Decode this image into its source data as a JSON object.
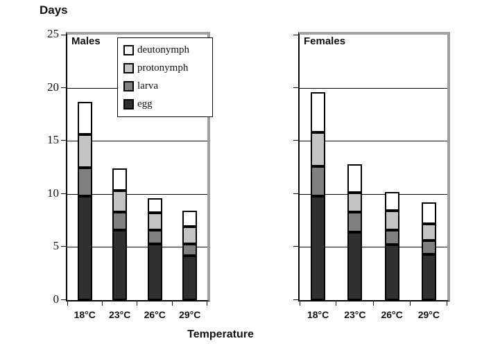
{
  "page": {
    "y_axis_title": "Days",
    "x_axis_title": "Temperature"
  },
  "colors": {
    "egg": "#303030",
    "larva": "#808080",
    "protonymph": "#c4c4c4",
    "deutonymph": "#ffffff",
    "bar_border": "#000000",
    "gridline": "#000000",
    "panel_shadow": "#a0a0a0"
  },
  "legend": {
    "position": "top-left-inside-males-panel",
    "entries": [
      {
        "label": "deutonymph",
        "color": "#ffffff"
      },
      {
        "label": "protonymph",
        "color": "#c4c4c4"
      },
      {
        "label": "larva",
        "color": "#808080"
      },
      {
        "label": "egg",
        "color": "#303030"
      }
    ]
  },
  "chart_data": [
    {
      "type": "bar",
      "stacked": true,
      "title": "Males",
      "categories": [
        "18°C",
        "23°C",
        "26°C",
        "29°C"
      ],
      "series": [
        {
          "name": "egg",
          "color": "#303030",
          "values": [
            9.8,
            6.6,
            5.3,
            4.2
          ]
        },
        {
          "name": "larva",
          "color": "#808080",
          "values": [
            2.7,
            1.7,
            1.3,
            1.1
          ]
        },
        {
          "name": "protonymph",
          "color": "#c4c4c4",
          "values": [
            3.1,
            2.0,
            1.6,
            1.6
          ]
        },
        {
          "name": "deutonymph",
          "color": "#ffffff",
          "values": [
            3.1,
            2.1,
            1.4,
            1.5
          ]
        }
      ],
      "ylim": [
        0,
        25
      ],
      "yticks": [
        0,
        5,
        10,
        15,
        20,
        25
      ],
      "grid": true,
      "show_ytick_labels": true
    },
    {
      "type": "bar",
      "stacked": true,
      "title": "Females",
      "categories": [
        "18°C",
        "23°C",
        "26°C",
        "29°C"
      ],
      "series": [
        {
          "name": "egg",
          "color": "#303030",
          "values": [
            9.8,
            6.4,
            5.2,
            4.3
          ]
        },
        {
          "name": "larva",
          "color": "#808080",
          "values": [
            2.8,
            1.9,
            1.4,
            1.3
          ]
        },
        {
          "name": "protonymph",
          "color": "#c4c4c4",
          "values": [
            3.2,
            1.8,
            1.8,
            1.6
          ]
        },
        {
          "name": "deutonymph",
          "color": "#ffffff",
          "values": [
            3.8,
            2.7,
            1.8,
            2.0
          ]
        }
      ],
      "ylim": [
        0,
        25
      ],
      "yticks": [
        0,
        5,
        10,
        15,
        20,
        25
      ],
      "grid": true,
      "show_ytick_labels": false
    }
  ]
}
